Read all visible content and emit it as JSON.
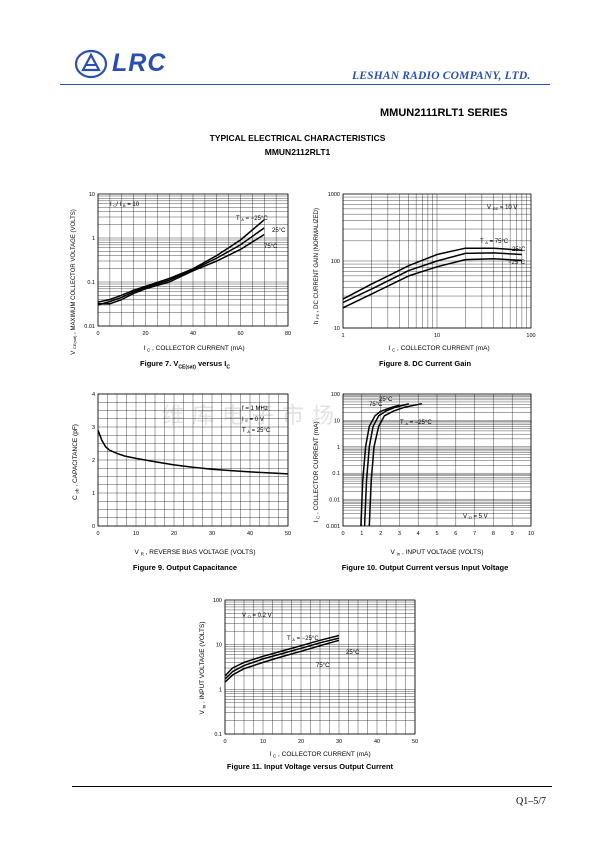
{
  "header": {
    "logo_text": "LRC",
    "company": "LESHAN RADIO COMPANY, LTD.",
    "series": "MMUN2111RLT1  SERIES"
  },
  "section": {
    "title": "TYPICAL ELECTRICAL CHARACTERISTICS",
    "subtitle": "MMUN2112RLT1"
  },
  "watermark": "维库电子市场",
  "footer": {
    "page": "Q1–5/7"
  },
  "colors": {
    "brand": "#2a4fb0",
    "ink": "#000000",
    "grid": "#000000"
  },
  "chart_data": [
    {
      "id": "fig7",
      "type": "line",
      "caption_pre": "Figure 7. V",
      "caption_sub": "CE(sat)",
      "caption_post": " versus I",
      "caption_sub2": "C",
      "xlabel": "I C , COLLECTOR CURRENT (mA)",
      "ylabel": "V CE(sat) , MAXIMUM COLLECTOR VOLTAGE (VOLTS)",
      "xscale": "linear",
      "yscale": "log",
      "xlim": [
        0,
        80
      ],
      "ylim": [
        0.01,
        10
      ],
      "xticks": [
        0,
        20,
        40,
        60,
        80
      ],
      "xticklabels": [
        "0",
        "20",
        "40",
        "60",
        "80"
      ],
      "yticks": [
        0.01,
        0.1,
        1,
        10
      ],
      "yticklabels": [
        "0.01",
        "0.1",
        "1",
        "10"
      ],
      "annotations": [
        "I C / I B = 10",
        "T A = −25°C",
        "25°C",
        "75°C"
      ],
      "series": [
        {
          "x": [
            0,
            5,
            10,
            15,
            20,
            30,
            40,
            50,
            60,
            70
          ],
          "y": [
            0.035,
            0.04,
            0.05,
            0.065,
            0.08,
            0.12,
            0.2,
            0.4,
            0.9,
            2.6
          ]
        },
        {
          "x": [
            0,
            5,
            10,
            15,
            20,
            30,
            40,
            50,
            60,
            70
          ],
          "y": [
            0.03,
            0.036,
            0.045,
            0.06,
            0.075,
            0.11,
            0.19,
            0.35,
            0.7,
            1.7
          ]
        },
        {
          "x": [
            0,
            5,
            10,
            15,
            20,
            30,
            40,
            50,
            60,
            70
          ],
          "y": [
            0.032,
            0.032,
            0.04,
            0.055,
            0.07,
            0.1,
            0.18,
            0.3,
            0.55,
            1.2
          ]
        }
      ]
    },
    {
      "id": "fig8",
      "type": "line",
      "caption": "Figure 8. DC Current Gain",
      "xlabel": "I C , COLLECTOR CURRENT (mA)",
      "ylabel": "h FE , DC CURRENT GAIN (NORMALIZED)",
      "xscale": "log",
      "yscale": "log",
      "xlim": [
        1,
        100
      ],
      "ylim": [
        10,
        1000
      ],
      "xticks": [
        1,
        10,
        100
      ],
      "xticklabels": [
        "1",
        "10",
        "100"
      ],
      "yticks": [
        10,
        100,
        1000
      ],
      "yticklabels": [
        "10",
        "100",
        "1000"
      ],
      "annotations": [
        "V CE = 10 V",
        "T A = 75°C",
        "25°C",
        "−25°C"
      ],
      "series": [
        {
          "x": [
            1,
            2,
            5,
            10,
            20,
            40,
            80
          ],
          "y": [
            27,
            45,
            85,
            125,
            155,
            155,
            145
          ]
        },
        {
          "x": [
            1,
            2,
            5,
            10,
            20,
            40,
            80
          ],
          "y": [
            24,
            38,
            72,
            100,
            130,
            132,
            125
          ]
        },
        {
          "x": [
            1,
            2,
            5,
            10,
            20,
            40,
            80
          ],
          "y": [
            20,
            32,
            60,
            82,
            105,
            108,
            102
          ]
        }
      ]
    },
    {
      "id": "fig9",
      "type": "line",
      "caption": "Figure 9. Output Capacitance",
      "xlabel": "V R , REVERSE BIAS VOLTAGE (VOLTS)",
      "ylabel": "C ob , CAPACITANCE (pF)",
      "xscale": "linear",
      "yscale": "linear",
      "xlim": [
        0,
        50
      ],
      "ylim": [
        0,
        4
      ],
      "xticks": [
        0,
        10,
        20,
        30,
        40,
        50
      ],
      "xticklabels": [
        "0",
        "10",
        "20",
        "30",
        "40",
        "50"
      ],
      "yticks": [
        0,
        1,
        2,
        3,
        4
      ],
      "yticklabels": [
        "0",
        "1",
        "2",
        "3",
        "4"
      ],
      "annotations": [
        "f = 1 MHz",
        "I E = 0 V",
        "T A = 25°C"
      ],
      "series": [
        {
          "x": [
            0,
            1,
            2,
            3,
            5,
            7,
            10,
            15,
            20,
            25,
            30,
            35,
            40,
            45,
            50
          ],
          "y": [
            2.9,
            2.6,
            2.4,
            2.3,
            2.2,
            2.12,
            2.05,
            1.95,
            1.85,
            1.78,
            1.72,
            1.68,
            1.64,
            1.61,
            1.58
          ]
        }
      ]
    },
    {
      "id": "fig10",
      "type": "line",
      "caption": "Figure 10. Output Current versus Input Voltage",
      "xlabel": "V in , INPUT VOLTAGE (VOLTS)",
      "ylabel": "I C , COLLECTOR CURRENT (mA)",
      "xscale": "linear",
      "yscale": "log",
      "xlim": [
        0,
        10
      ],
      "ylim": [
        0.001,
        100
      ],
      "xticks": [
        0,
        1,
        2,
        3,
        4,
        5,
        6,
        7,
        8,
        9,
        10
      ],
      "xticklabels": [
        "0",
        "1",
        "2",
        "3",
        "4",
        "5",
        "6",
        "7",
        "8",
        "9",
        "10"
      ],
      "yticks": [
        0.001,
        0.01,
        0.1,
        1,
        10,
        100
      ],
      "yticklabels": [
        "0.001",
        "0.01",
        "0.1",
        "1",
        "10",
        "100"
      ],
      "annotations": [
        "75°C",
        "25°C",
        "T A = −25°C",
        "V O = 5 V"
      ],
      "series": [
        {
          "x": [
            0.95,
            1.05,
            1.2,
            1.4,
            1.7,
            2.0,
            2.5,
            3.0
          ],
          "y": [
            0.001,
            0.05,
            1,
            6,
            15,
            22,
            30,
            38
          ]
        },
        {
          "x": [
            1.15,
            1.25,
            1.4,
            1.6,
            1.9,
            2.3,
            2.8,
            3.5
          ],
          "y": [
            0.001,
            0.05,
            1,
            6,
            15,
            23,
            32,
            42
          ]
        },
        {
          "x": [
            1.4,
            1.5,
            1.65,
            1.9,
            2.2,
            2.7,
            3.3,
            4.2
          ],
          "y": [
            0.001,
            0.05,
            1,
            6,
            15,
            23,
            32,
            43
          ]
        }
      ]
    },
    {
      "id": "fig11",
      "type": "line",
      "caption": "Figure 11. Input Voltage versus Output Current",
      "xlabel": "I C , COLLECTOR CURRENT (mA)",
      "ylabel": "V in , INPUT VOLTAGE (VOLTS)",
      "xscale": "linear",
      "yscale": "log",
      "xlim": [
        0,
        50
      ],
      "ylim": [
        0.1,
        100
      ],
      "xticks": [
        0,
        10,
        20,
        30,
        40,
        50
      ],
      "xticklabels": [
        "0",
        "10",
        "20",
        "30",
        "40",
        "50"
      ],
      "yticks": [
        0.1,
        1,
        10,
        100
      ],
      "yticklabels": [
        "0.1",
        "1",
        "10",
        "100"
      ],
      "annotations": [
        "V O = 0.2 V",
        "T A = −25°C",
        "25°C",
        "75°C"
      ],
      "series": [
        {
          "x": [
            0,
            2,
            5,
            10,
            15,
            20,
            25,
            30
          ],
          "y": [
            2.0,
            3.0,
            4.0,
            5.5,
            7.2,
            9.5,
            12.5,
            16
          ]
        },
        {
          "x": [
            0,
            2,
            5,
            10,
            15,
            20,
            25,
            30
          ],
          "y": [
            1.7,
            2.5,
            3.4,
            4.8,
            6.3,
            8.3,
            11,
            14
          ]
        },
        {
          "x": [
            0,
            2,
            5,
            10,
            15,
            20,
            25,
            30
          ],
          "y": [
            1.45,
            2.1,
            2.9,
            4.0,
            5.4,
            7.1,
            9.5,
            12.5
          ]
        }
      ]
    }
  ]
}
